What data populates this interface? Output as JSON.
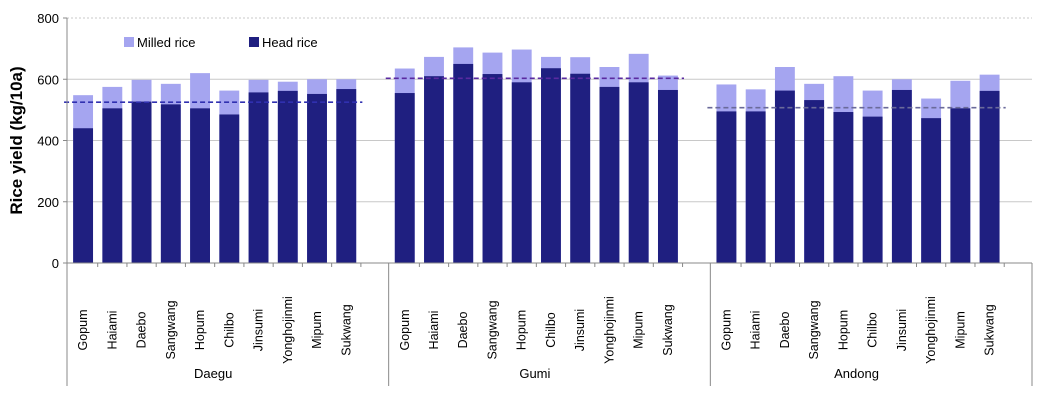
{
  "chart_data": {
    "type": "bar",
    "ylabel": "Rice yield (kg/10a)",
    "ylim": [
      0,
      800
    ],
    "yticks": [
      "0",
      "200",
      "400",
      "600",
      "800"
    ],
    "grid": true,
    "legend_position": "top-left",
    "overlay": true,
    "series": [
      {
        "name": "Milled rice",
        "color": "#a5a5f0"
      },
      {
        "name": "Head rice",
        "color": "#1f1f80"
      }
    ],
    "groups": [
      {
        "name": "Daegu",
        "categories": [
          "Gopum",
          "Haiami",
          "Daebo",
          "Sangwang",
          "Hopum",
          "Chilbo",
          "Jinsumi",
          "Yonghojinmi",
          "Mipum",
          "Sukwang"
        ],
        "milled": [
          548,
          575,
          598,
          585,
          620,
          563,
          598,
          592,
          600,
          600
        ],
        "head": [
          440,
          505,
          527,
          518,
          505,
          485,
          557,
          562,
          552,
          568
        ],
        "mean": 525
      },
      {
        "name": "Gumi",
        "categories": [
          "Gopum",
          "Haiami",
          "Daebo",
          "Sangwang",
          "Hopum",
          "Chilbo",
          "Jinsumi",
          "Yonghojinmi",
          "Mipum",
          "Sukwang"
        ],
        "milled": [
          635,
          673,
          704,
          687,
          697,
          673,
          672,
          640,
          683,
          612
        ],
        "head": [
          555,
          610,
          650,
          617,
          590,
          636,
          618,
          575,
          590,
          565
        ],
        "mean": 603
      },
      {
        "name": "Andong",
        "categories": [
          "Gopum",
          "Haiami",
          "Daebo",
          "Sangwang",
          "Hopum",
          "Chilbo",
          "Jinsumi",
          "Yonghojinmi",
          "Mipum",
          "Sukwang"
        ],
        "milled": [
          583,
          567,
          640,
          585,
          610,
          563,
          600,
          537,
          595,
          615
        ],
        "head": [
          495,
          495,
          563,
          532,
          493,
          478,
          565,
          473,
          505,
          562
        ],
        "mean": 507
      }
    ]
  }
}
